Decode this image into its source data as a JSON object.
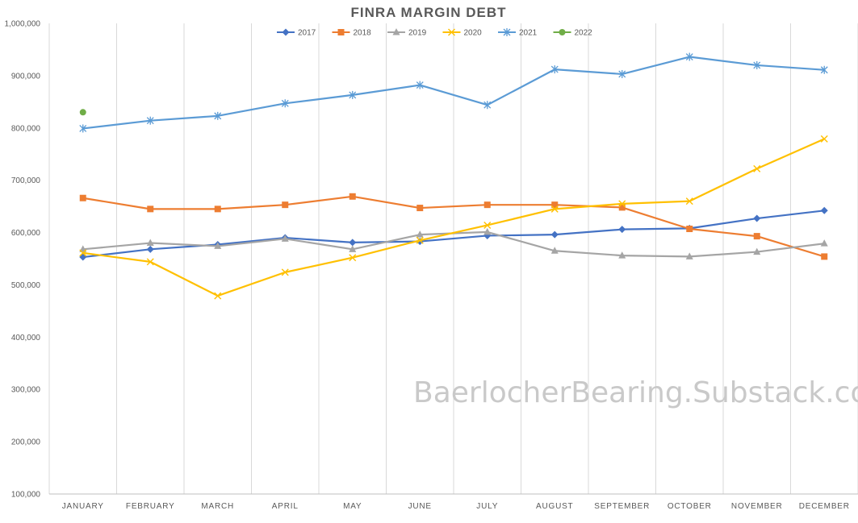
{
  "watermark": "BaerlocherBearing.Substack.com",
  "chart_data": {
    "type": "line",
    "title": "FINRA MARGIN DEBT",
    "xlabel": "",
    "ylabel": "",
    "categories": [
      "JANUARY",
      "FEBRUARY",
      "MARCH",
      "APRIL",
      "MAY",
      "JUNE",
      "JULY",
      "AUGUST",
      "SEPTEMBER",
      "OCTOBER",
      "NOVEMBER",
      "DECEMBER"
    ],
    "ylim": [
      100000,
      1000000
    ],
    "yticks": [
      100000,
      200000,
      300000,
      400000,
      500000,
      600000,
      700000,
      800000,
      900000,
      1000000
    ],
    "ytick_labels": [
      "100,000",
      "200,000",
      "300,000",
      "400,000",
      "500,000",
      "600,000",
      "700,000",
      "800,000",
      "900,000",
      "1,000,000"
    ],
    "grid": "vertical",
    "legend_position": "top",
    "series": [
      {
        "name": "2017",
        "color": "#4472c4",
        "marker": "diamond",
        "values": [
          553000,
          568000,
          577000,
          590000,
          581000,
          583000,
          594000,
          596000,
          606000,
          608000,
          627000,
          642000
        ]
      },
      {
        "name": "2018",
        "color": "#ed7d31",
        "marker": "square",
        "values": [
          666000,
          645000,
          645000,
          653000,
          669000,
          647000,
          653000,
          653000,
          648000,
          607000,
          593000,
          554000
        ]
      },
      {
        "name": "2019",
        "color": "#a5a5a5",
        "marker": "triangle",
        "values": [
          568000,
          580000,
          574000,
          588000,
          568000,
          596000,
          601000,
          565000,
          556000,
          554000,
          563000,
          579000
        ]
      },
      {
        "name": "2020",
        "color": "#ffc000",
        "marker": "x",
        "values": [
          561000,
          544000,
          479000,
          524000,
          552000,
          585000,
          614000,
          645000,
          655000,
          660000,
          722000,
          779000
        ]
      },
      {
        "name": "2021",
        "color": "#5b9bd5",
        "marker": "star",
        "values": [
          799000,
          814000,
          823000,
          847000,
          863000,
          882000,
          844000,
          912000,
          903000,
          936000,
          920000,
          911000
        ]
      },
      {
        "name": "2022",
        "color": "#70ad47",
        "marker": "circle",
        "values": [
          830000,
          null,
          null,
          null,
          null,
          null,
          null,
          null,
          null,
          null,
          null,
          null
        ]
      }
    ]
  }
}
